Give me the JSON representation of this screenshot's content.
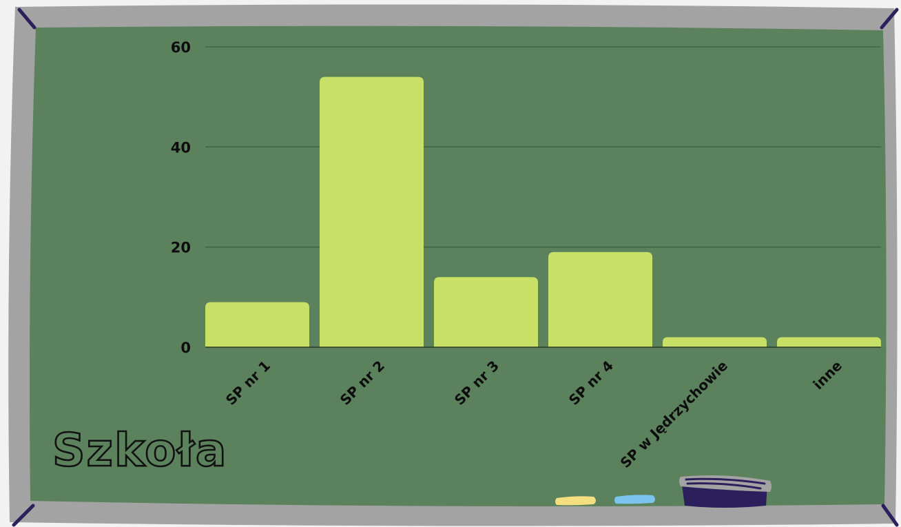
{
  "colors": {
    "frame": "#a3a3a3",
    "board": "#5b825c",
    "bar": "#c8e066",
    "grid": "#3f5f41",
    "corner": "#2b1f5c",
    "chalk_yellow": "#f3de80",
    "chalk_blue": "#7cc4ee",
    "eraser_body": "#2b1f5c",
    "eraser_top": "#a3a3a3"
  },
  "chart_data": {
    "type": "bar",
    "title": "Szkoła",
    "categories": [
      "SP nr 1",
      "SP nr 2",
      "SP nr 3",
      "SP nr 4",
      "SP w Jędrzychowie",
      "inne"
    ],
    "values": [
      9,
      54,
      14,
      19,
      2,
      2
    ],
    "ylim": [
      0,
      60
    ],
    "yticks": [
      "0",
      "20",
      "40",
      "60"
    ],
    "xlabel": "",
    "ylabel": "",
    "grid": true,
    "legend": "none"
  }
}
